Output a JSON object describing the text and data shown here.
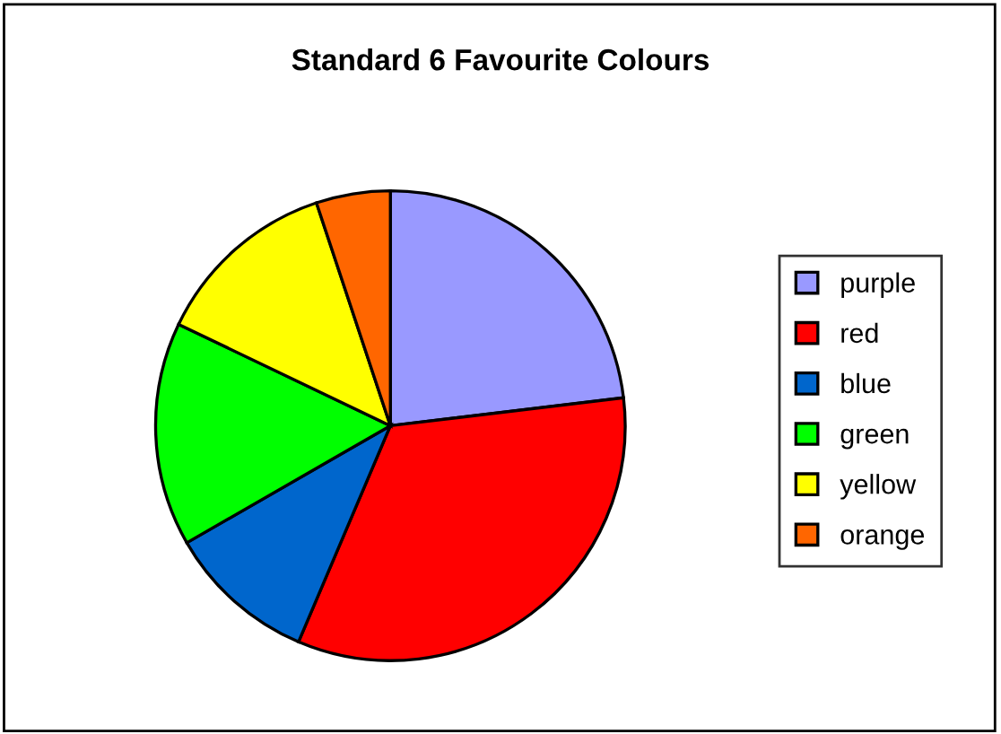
{
  "chart_data": {
    "type": "pie",
    "title": "Standard 6 Favourite Colours",
    "categories": [
      "purple",
      "red",
      "blue",
      "green",
      "yellow",
      "orange"
    ],
    "values": [
      23.1,
      33.3,
      10.3,
      15.4,
      12.8,
      5.1
    ],
    "colors": [
      "#9999ff",
      "#ff0000",
      "#0066cc",
      "#00ff00",
      "#ffff00",
      "#ff6600"
    ],
    "legend": "right"
  }
}
